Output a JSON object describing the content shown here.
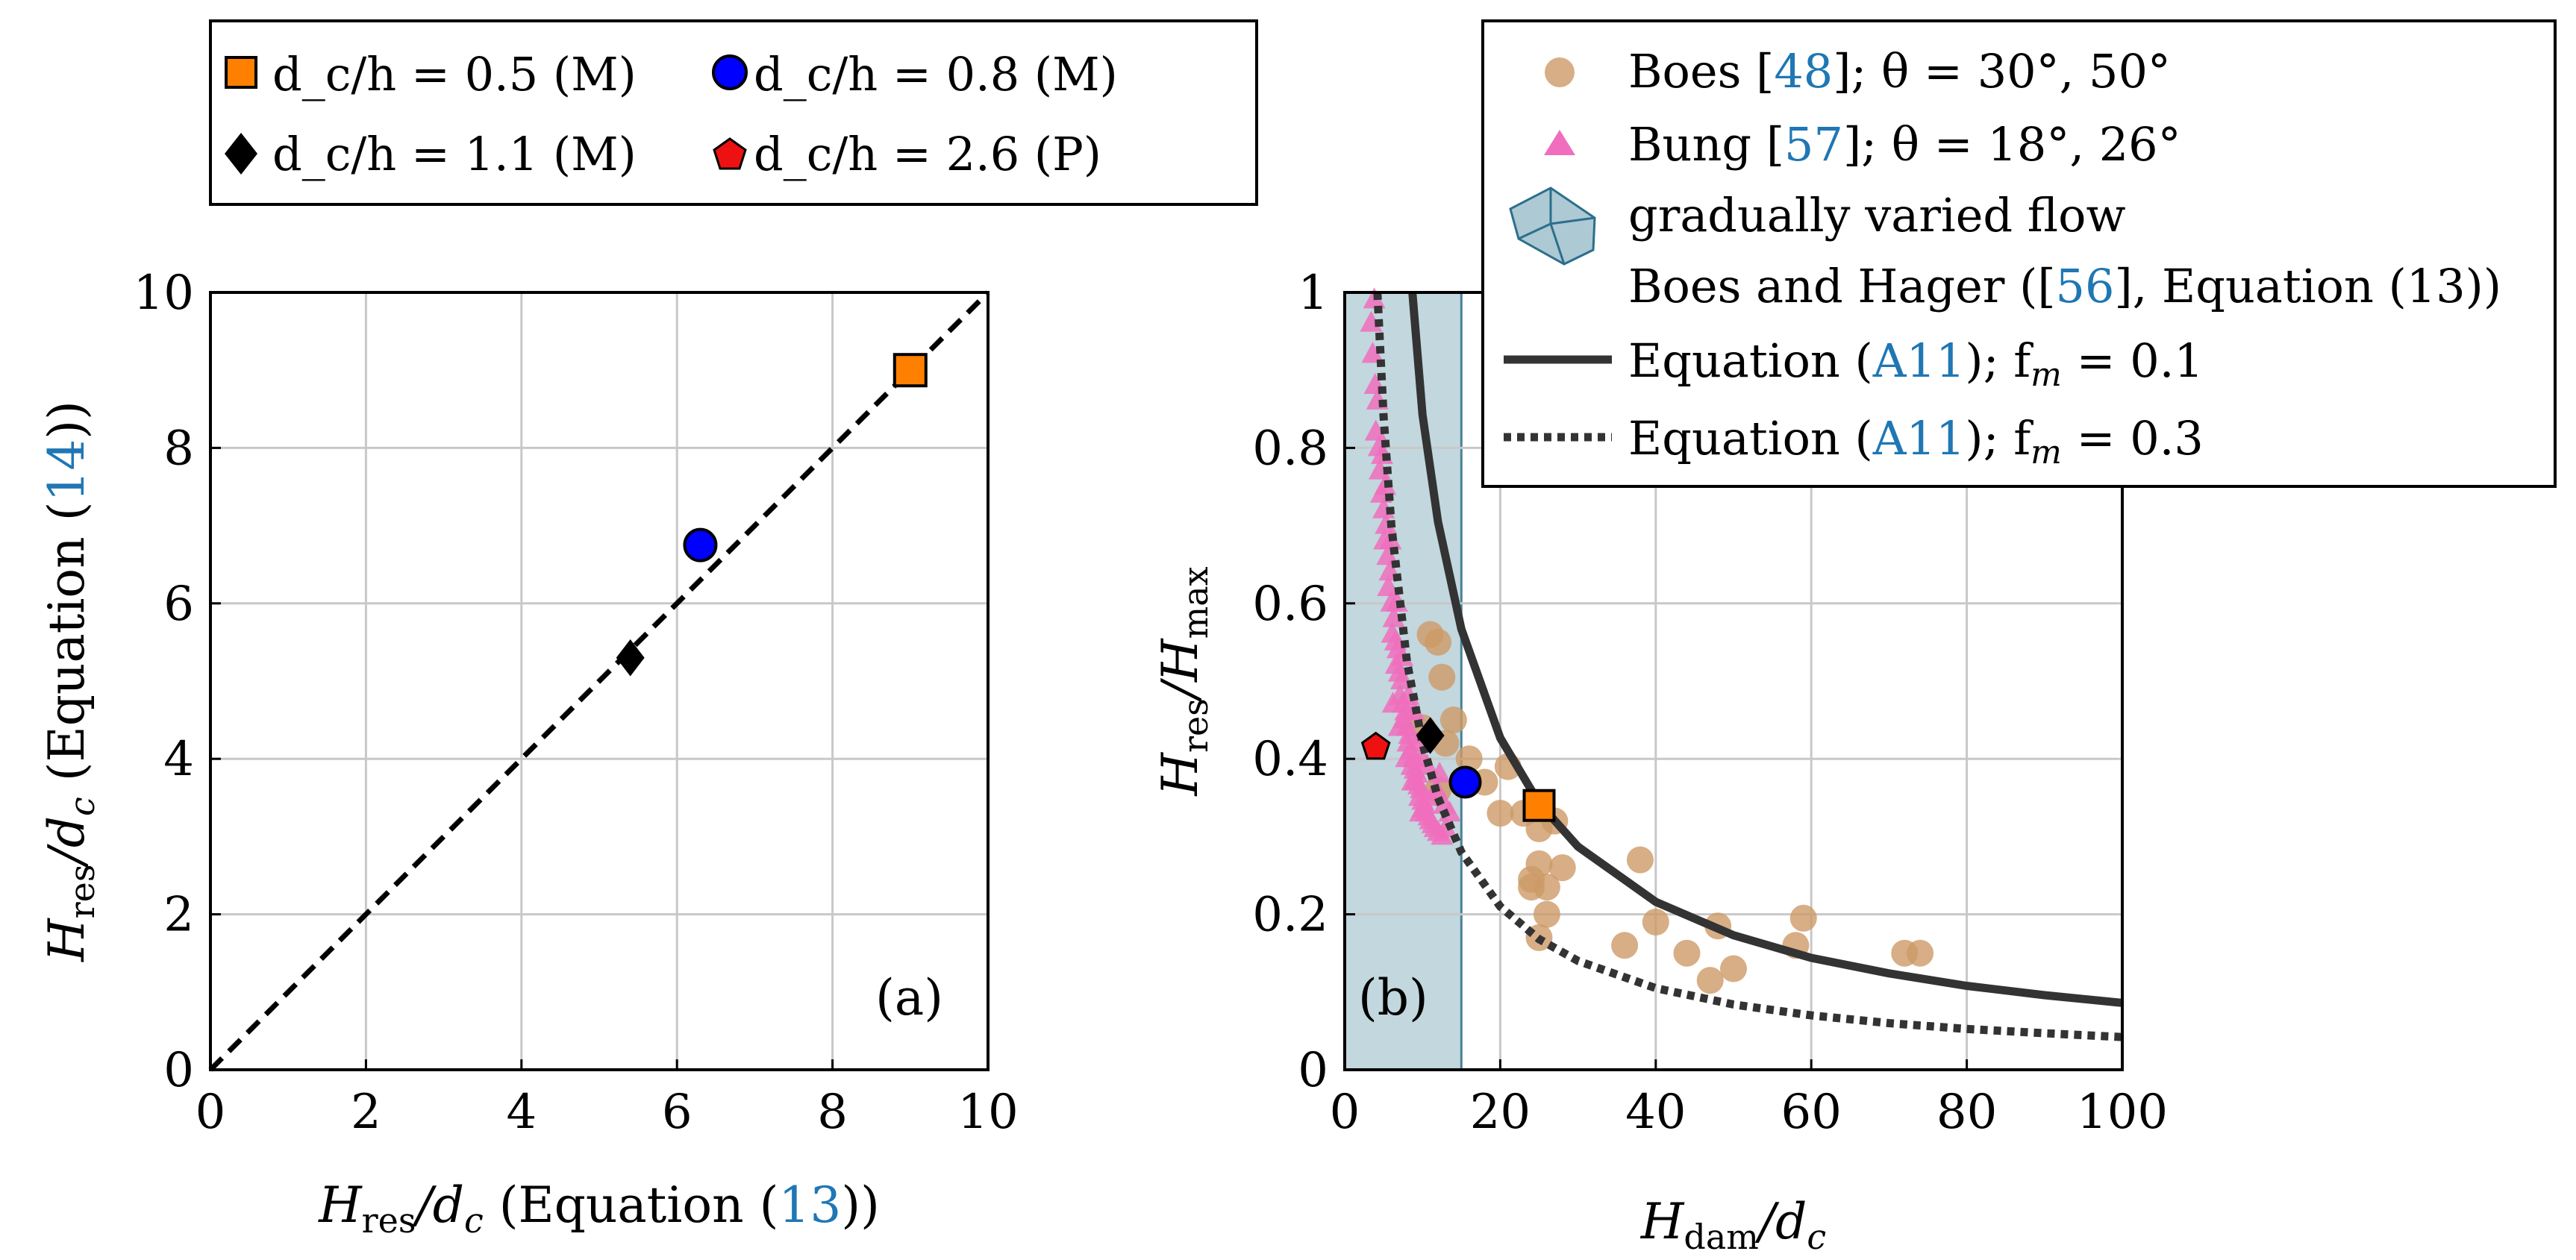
{
  "chart_data": [
    {
      "type": "scatter",
      "panel_label": "(a)",
      "xlabel": "H_res / d_c (Equation (13))",
      "ylabel": "H_res / d_c (Equation (14))",
      "xlim": [
        0,
        10
      ],
      "ylim": [
        0,
        10
      ],
      "xticks": [
        "0",
        "2",
        "4",
        "6",
        "8",
        "10"
      ],
      "yticks": [
        "0",
        "2",
        "4",
        "6",
        "8",
        "10"
      ],
      "grid": true,
      "reference_line": {
        "name": "1:1",
        "style": "dashed",
        "points": [
          [
            0,
            0
          ],
          [
            10,
            10
          ]
        ]
      },
      "series": [
        {
          "name": "d_c/h = 0.5 (M)",
          "marker": "square",
          "color": "#ff8000",
          "points": [
            [
              9.0,
              9.0
            ]
          ]
        },
        {
          "name": "d_c/h = 0.8 (M)",
          "marker": "circle",
          "color": "#0000ff",
          "points": [
            [
              6.3,
              6.75
            ]
          ]
        },
        {
          "name": "d_c/h = 1.1 (M)",
          "marker": "diamond",
          "color": "#000000",
          "points": [
            [
              5.4,
              5.3
            ]
          ]
        }
      ]
    },
    {
      "type": "scatter",
      "panel_label": "(b)",
      "xlabel": "H_dam / d_c",
      "ylabel": "H_res / H_max",
      "xlim": [
        0,
        100
      ],
      "ylim": [
        0,
        1
      ],
      "xticks": [
        "0",
        "20",
        "40",
        "60",
        "80",
        "100"
      ],
      "yticks": [
        "0",
        "0.2",
        "0.4",
        "0.6",
        "0.8",
        "1"
      ],
      "grid": true,
      "shaded_region": {
        "name": "gradually varied flow",
        "x": [
          0,
          15
        ],
        "color": "#adc9d3"
      },
      "curves": [
        {
          "name": "Equation (A11); f_m = 0.1",
          "style": "solid",
          "color": "#333333",
          "points": [
            [
              8.7,
              1.0
            ],
            [
              10,
              0.843
            ],
            [
              12,
              0.705
            ],
            [
              15,
              0.567
            ],
            [
              20,
              0.427
            ],
            [
              25,
              0.343
            ],
            [
              30,
              0.287
            ],
            [
              40,
              0.216
            ],
            [
              50,
              0.173
            ],
            [
              60,
              0.144
            ],
            [
              70,
              0.124
            ],
            [
              80,
              0.108
            ],
            [
              90,
              0.096
            ],
            [
              100,
              0.086
            ]
          ]
        },
        {
          "name": "Equation (A11); f_m = 0.3",
          "style": "dotted",
          "color": "#333333",
          "points": [
            [
              4.2,
              1.0
            ],
            [
              5,
              0.84
            ],
            [
              6,
              0.7
            ],
            [
              8,
              0.525
            ],
            [
              10,
              0.42
            ],
            [
              12,
              0.35
            ],
            [
              15,
              0.28
            ],
            [
              20,
              0.21
            ],
            [
              25,
              0.168
            ],
            [
              30,
              0.14
            ],
            [
              40,
              0.105
            ],
            [
              50,
              0.084
            ],
            [
              60,
              0.07
            ],
            [
              70,
              0.06
            ],
            [
              80,
              0.0525
            ],
            [
              90,
              0.047
            ],
            [
              100,
              0.042
            ]
          ]
        }
      ],
      "series": [
        {
          "name": "Boes [48]; θ = 30°, 50°",
          "marker": "circle",
          "color": "#cd9a66",
          "points": [
            [
              11,
              0.56
            ],
            [
              12,
              0.55
            ],
            [
              12.5,
              0.505
            ],
            [
              14,
              0.45
            ],
            [
              10,
              0.44
            ],
            [
              13,
              0.42
            ],
            [
              16,
              0.4
            ],
            [
              18,
              0.37
            ],
            [
              21,
              0.39
            ],
            [
              20,
              0.33
            ],
            [
              23,
              0.33
            ],
            [
              24,
              0.235
            ],
            [
              25,
              0.265
            ],
            [
              26,
              0.235
            ],
            [
              25,
              0.31
            ],
            [
              27,
              0.32
            ],
            [
              28,
              0.26
            ],
            [
              26,
              0.2
            ],
            [
              25,
              0.17
            ],
            [
              24,
              0.245
            ],
            [
              38,
              0.27
            ],
            [
              40,
              0.19
            ],
            [
              36,
              0.16
            ],
            [
              44,
              0.15
            ],
            [
              48,
              0.185
            ],
            [
              47,
              0.115
            ],
            [
              50,
              0.13
            ],
            [
              58,
              0.16
            ],
            [
              59,
              0.195
            ],
            [
              72,
              0.15
            ],
            [
              74,
              0.15
            ],
            [
              12,
              0.36
            ]
          ]
        },
        {
          "name": "Bung [57]; θ = 18°, 26°",
          "marker": "triangle",
          "color": "#f06ebd",
          "points": [
            [
              3.4,
              0.96
            ],
            [
              3.8,
              0.99
            ],
            [
              3.6,
              0.92
            ],
            [
              3.9,
              0.88
            ],
            [
              4.2,
              0.86
            ],
            [
              4.0,
              0.82
            ],
            [
              4.4,
              0.8
            ],
            [
              4.8,
              0.79
            ],
            [
              4.5,
              0.77
            ],
            [
              4.7,
              0.74
            ],
            [
              5.0,
              0.72
            ],
            [
              5.3,
              0.7
            ],
            [
              5.1,
              0.68
            ],
            [
              5.5,
              0.66
            ],
            [
              5.8,
              0.64
            ],
            [
              5.6,
              0.62
            ],
            [
              6.0,
              0.6
            ],
            [
              6.3,
              0.58
            ],
            [
              6.1,
              0.56
            ],
            [
              6.5,
              0.55
            ],
            [
              6.8,
              0.54
            ],
            [
              6.6,
              0.52
            ],
            [
              7.0,
              0.51
            ],
            [
              7.3,
              0.5
            ],
            [
              7.1,
              0.48
            ],
            [
              7.5,
              0.47
            ],
            [
              7.8,
              0.46
            ],
            [
              7.6,
              0.45
            ],
            [
              8.0,
              0.44
            ],
            [
              8.3,
              0.43
            ],
            [
              8.1,
              0.42
            ],
            [
              8.5,
              0.41
            ],
            [
              8.8,
              0.4
            ],
            [
              8.6,
              0.39
            ],
            [
              9.0,
              0.385
            ],
            [
              9.3,
              0.38
            ],
            [
              9.1,
              0.37
            ],
            [
              9.5,
              0.365
            ],
            [
              9.8,
              0.36
            ],
            [
              9.6,
              0.35
            ],
            [
              10.0,
              0.345
            ],
            [
              10.3,
              0.34
            ],
            [
              10.1,
              0.335
            ],
            [
              10.5,
              0.33
            ],
            [
              10.8,
              0.325
            ],
            [
              11.0,
              0.32
            ],
            [
              11.3,
              0.315
            ],
            [
              11.6,
              0.31
            ],
            [
              12.0,
              0.305
            ],
            [
              12.5,
              0.3
            ],
            [
              5.2,
              0.75
            ],
            [
              5.9,
              0.68
            ],
            [
              6.7,
              0.6
            ],
            [
              7.4,
              0.53
            ],
            [
              8.2,
              0.48
            ],
            [
              9.4,
              0.42
            ],
            [
              10.6,
              0.39
            ],
            [
              11.8,
              0.36
            ],
            [
              12.8,
              0.34
            ],
            [
              13.5,
              0.33
            ],
            [
              12.2,
              0.38
            ],
            [
              13.0,
              0.31
            ],
            [
              8.9,
              0.46
            ],
            [
              9.9,
              0.4
            ],
            [
              11.2,
              0.35
            ],
            [
              7.0,
              0.44
            ],
            [
              7.9,
              0.4
            ],
            [
              8.7,
              0.37
            ],
            [
              9.7,
              0.33
            ],
            [
              6.2,
              0.47
            ]
          ]
        },
        {
          "name": "d_c/h = 0.5 (M)",
          "marker": "square",
          "color": "#ff8000",
          "points": [
            [
              25,
              0.34
            ]
          ]
        },
        {
          "name": "d_c/h = 0.8 (M)",
          "marker": "circle",
          "color": "#0000ff",
          "points": [
            [
              15.5,
              0.37
            ]
          ]
        },
        {
          "name": "d_c/h = 1.1 (M)",
          "marker": "diamond",
          "color": "#000000",
          "points": [
            [
              11,
              0.43
            ]
          ]
        },
        {
          "name": "d_c/h = 2.6 (P)",
          "marker": "pentagon",
          "color": "#ee1111",
          "points": [
            [
              4,
              0.415
            ]
          ]
        }
      ]
    }
  ],
  "legend_top_left": [
    {
      "marker": "square",
      "text": "d_c/h = 0.5 (M)"
    },
    {
      "marker": "circle",
      "text": "d_c/h = 0.8 (M)"
    },
    {
      "marker": "diamond",
      "text": "d_c/h = 1.1 (M)"
    },
    {
      "marker": "pentagon",
      "text": "d_c/h = 2.6 (P)"
    }
  ],
  "legend_top_right": {
    "boes": {
      "name": "Boes ",
      "ref": "48",
      "tail": "; θ = 30°, 50°"
    },
    "bung": {
      "name": "Bung ",
      "ref": "57",
      "tail": "; θ = 18°, 26°"
    },
    "gvf_line1": "gradually varied flow",
    "gvf_line2": {
      "name": "Boes and Hager ([",
      "ref": "56",
      "tail": "], Equation (13))"
    },
    "eq1": {
      "name": "Equation (",
      "ref": "A11",
      "tail": "); f",
      "sub": "m",
      "value": " = 0.1"
    },
    "eq2": {
      "name": "Equation (",
      "ref": "A11",
      "tail": "); f",
      "sub": "m",
      "value": " = 0.3"
    }
  },
  "axis_text": {
    "a_xlabel": {
      "pre": "H",
      "sub": "res",
      "mid": "/d",
      "sub2": "c",
      "post": " (Equation (",
      "ref": "13",
      "end": "))"
    },
    "a_ylabel": {
      "pre": "H",
      "sub": "res",
      "mid": "/d",
      "sub2": "c",
      "post": " (Equation (",
      "ref": "14",
      "end": "))"
    },
    "b_xlabel": {
      "pre": "H",
      "sub": "dam",
      "mid": "/d",
      "sub2": "c"
    },
    "b_ylabel": {
      "pre": "H",
      "sub": "res",
      "mid": "/H",
      "sub2": "max"
    }
  },
  "colors": {
    "orange": "#ff8000",
    "blue": "#0000ff",
    "black": "#000000",
    "red": "#ee1111",
    "boes": "#cd9a66",
    "bung": "#f06ebd",
    "shade": "#adc9d3"
  }
}
